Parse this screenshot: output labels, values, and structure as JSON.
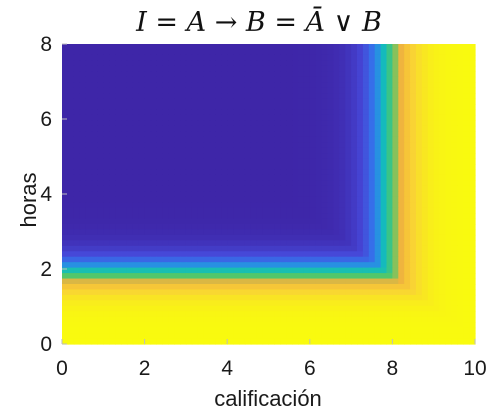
{
  "chart_data": {
    "type": "heatmap",
    "title": "I = A → B = Ā ∨ B",
    "xlabel": "calificación",
    "ylabel": "horas",
    "xlim": [
      0,
      10
    ],
    "ylim": [
      0,
      8
    ],
    "x_ticks": [
      "0",
      "2",
      "4",
      "6",
      "8",
      "10"
    ],
    "y_ticks": [
      "0",
      "2",
      "4",
      "6",
      "8"
    ],
    "x_tick_values": [
      0,
      2,
      4,
      6,
      8,
      10
    ],
    "y_tick_values": [
      0,
      2,
      4,
      6,
      8
    ],
    "grid": false,
    "legend": "none",
    "colormap": "parula",
    "colormap_stops": [
      "#3e26a8",
      "#4648d8",
      "#2f80f0",
      "#12beb9",
      "#51c76b",
      "#f3b43d",
      "#f9d533",
      "#f9fb0e"
    ],
    "x_transition": {
      "center": 7.9,
      "width": 0.35
    },
    "y_transition": {
      "center": 1.9,
      "width": 0.28
    },
    "value_min": 0,
    "value_max": 1
  }
}
